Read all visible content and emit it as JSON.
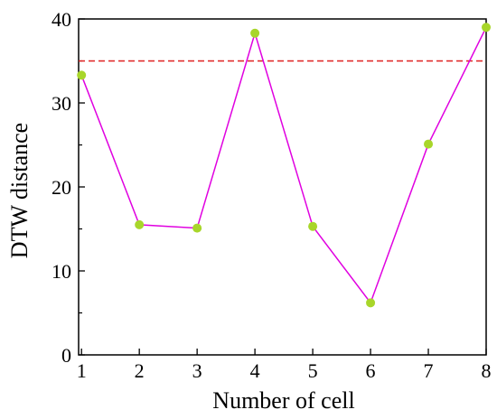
{
  "chart_data": {
    "type": "line",
    "xlabel": "Number of cell",
    "ylabel": "DTW distance",
    "x": [
      1,
      2,
      3,
      4,
      5,
      6,
      7,
      8
    ],
    "xlim": [
      0.95,
      8.0
    ],
    "ylim": [
      0,
      40
    ],
    "xticks": [
      1,
      2,
      3,
      4,
      5,
      6,
      7,
      8
    ],
    "yticks": [
      0,
      10,
      20,
      30,
      40
    ],
    "series": [
      {
        "values": [
          33.3,
          15.5,
          15.1,
          38.3,
          15.3,
          6.2,
          25.1,
          39.0
        ],
        "color": "#e000e0",
        "marker_color": "#a8d62a"
      }
    ],
    "threshold": {
      "value": 35,
      "color": "#e02020",
      "style": "dashed"
    },
    "grid": false
  }
}
